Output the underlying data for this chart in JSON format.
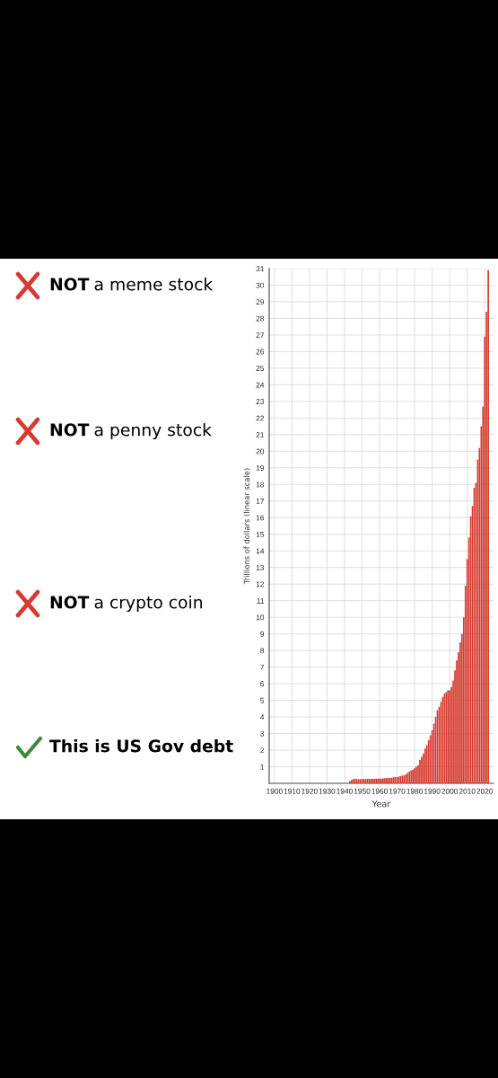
{
  "chart_data": {
    "type": "bar",
    "xlabel": "Year",
    "ylabel": "Trillions of dollars (linear scale)",
    "annotations": [
      "NOT a meme stock",
      "NOT a penny stock",
      "NOT a crypto coin",
      "This is US Gov debt"
    ],
    "x": [
      1943,
      1944,
      1945,
      1946,
      1947,
      1948,
      1949,
      1950,
      1951,
      1952,
      1953,
      1954,
      1955,
      1956,
      1957,
      1958,
      1959,
      1960,
      1961,
      1962,
      1963,
      1964,
      1965,
      1966,
      1967,
      1968,
      1969,
      1970,
      1971,
      1972,
      1973,
      1974,
      1975,
      1976,
      1977,
      1978,
      1979,
      1980,
      1981,
      1982,
      1983,
      1984,
      1985,
      1986,
      1987,
      1988,
      1989,
      1990,
      1991,
      1992,
      1993,
      1994,
      1995,
      1996,
      1997,
      1998,
      1999,
      2000,
      2001,
      2002,
      2003,
      2004,
      2005,
      2006,
      2007,
      2008,
      2009,
      2010,
      2011,
      2012,
      2013,
      2014,
      2015,
      2016,
      2017,
      2018,
      2019,
      2020,
      2021,
      2022
    ],
    "values": [
      0.14,
      0.2,
      0.26,
      0.27,
      0.26,
      0.25,
      0.25,
      0.26,
      0.26,
      0.26,
      0.27,
      0.27,
      0.27,
      0.27,
      0.27,
      0.28,
      0.29,
      0.29,
      0.29,
      0.3,
      0.31,
      0.32,
      0.32,
      0.33,
      0.34,
      0.37,
      0.37,
      0.38,
      0.41,
      0.44,
      0.47,
      0.48,
      0.54,
      0.63,
      0.71,
      0.78,
      0.83,
      0.91,
      1.0,
      1.1,
      1.4,
      1.6,
      1.8,
      2.1,
      2.3,
      2.6,
      2.9,
      3.2,
      3.6,
      4.0,
      4.4,
      4.6,
      4.9,
      5.2,
      5.4,
      5.5,
      5.6,
      5.6,
      5.8,
      6.2,
      6.8,
      7.4,
      7.9,
      8.5,
      9.0,
      10.0,
      11.9,
      13.5,
      14.8,
      16.1,
      16.7,
      17.8,
      18.1,
      19.5,
      20.2,
      21.5,
      22.7,
      26.9,
      28.4,
      30.9
    ],
    "color": "#d63a30",
    "xlim": [
      1897,
      2025
    ],
    "xticks": [
      1900,
      1910,
      1920,
      1930,
      1940,
      1950,
      1960,
      1970,
      1980,
      1990,
      2000,
      2010,
      2020
    ],
    "ylim": [
      0,
      31
    ],
    "yticks": [
      1,
      2,
      3,
      4,
      5,
      6,
      7,
      8,
      9,
      10,
      11,
      12,
      13,
      14,
      15,
      16,
      17,
      18,
      19,
      20,
      21,
      22,
      23,
      24,
      25,
      26,
      27,
      28,
      29,
      30,
      31
    ],
    "grid": true
  }
}
